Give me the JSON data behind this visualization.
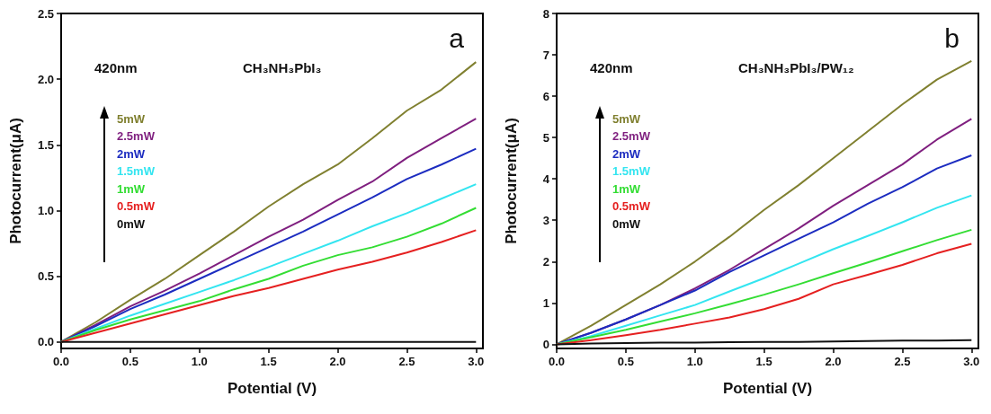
{
  "chart_data": [
    {
      "type": "line",
      "title": "a",
      "xlabel": "Potential (V)",
      "ylabel": "Photocurrent(μA)",
      "annotations": [
        "420nm",
        "CH₃NH₃PbI₃"
      ],
      "legend": "top left",
      "x": [
        0,
        0.25,
        0.5,
        0.75,
        1,
        1.25,
        1.5,
        1.75,
        2,
        2.25,
        2.5,
        2.75,
        3
      ],
      "xlim": [
        0,
        3.05
      ],
      "xticks": [
        {
          "value": 0,
          "label": "0.0"
        },
        {
          "value": 0.5,
          "label": "0.5"
        },
        {
          "value": 1,
          "label": "1.0"
        },
        {
          "value": 1.5,
          "label": "1.5"
        },
        {
          "value": 2,
          "label": "2.0"
        },
        {
          "value": 2.5,
          "label": "2.5"
        },
        {
          "value": 3,
          "label": "3.0"
        }
      ],
      "ylim": [
        -0.05,
        2.5
      ],
      "yticks": [
        {
          "value": 0,
          "label": "0.0"
        },
        {
          "value": 0.5,
          "label": "0.5"
        },
        {
          "value": 1,
          "label": "1.0"
        },
        {
          "value": 1.5,
          "label": "1.5"
        },
        {
          "value": 2,
          "label": "2.0"
        },
        {
          "value": 2.5,
          "label": "2.5"
        }
      ],
      "series": [
        {
          "name": "5mW",
          "color": "#808030",
          "values": [
            0,
            0.15,
            0.32,
            0.48,
            0.66,
            0.84,
            1.03,
            1.2,
            1.35,
            1.55,
            1.76,
            1.92,
            2.13
          ]
        },
        {
          "name": "2.5mW",
          "color": "#7f1f7f",
          "values": [
            0,
            0.13,
            0.27,
            0.39,
            0.52,
            0.66,
            0.8,
            0.93,
            1.08,
            1.22,
            1.4,
            1.55,
            1.7
          ]
        },
        {
          "name": "2mW",
          "color": "#1c2cc0",
          "values": [
            0,
            0.12,
            0.25,
            0.36,
            0.48,
            0.6,
            0.72,
            0.84,
            0.97,
            1.1,
            1.24,
            1.35,
            1.47
          ]
        },
        {
          "name": "1.5mW",
          "color": "#33e5f0",
          "values": [
            0,
            0.1,
            0.2,
            0.29,
            0.38,
            0.47,
            0.57,
            0.67,
            0.77,
            0.88,
            0.98,
            1.09,
            1.2
          ]
        },
        {
          "name": "1mW",
          "color": "#33dd33",
          "values": [
            0,
            0.09,
            0.17,
            0.24,
            0.31,
            0.4,
            0.48,
            0.58,
            0.66,
            0.72,
            0.8,
            0.9,
            1.02
          ]
        },
        {
          "name": "0.5mW",
          "color": "#e52020",
          "values": [
            0,
            0.07,
            0.14,
            0.21,
            0.28,
            0.35,
            0.41,
            0.48,
            0.55,
            0.61,
            0.68,
            0.76,
            0.85
          ]
        },
        {
          "name": "0mW",
          "color": "#111111",
          "values": [
            0,
            0,
            0,
            0,
            0,
            0,
            0,
            0,
            0,
            0,
            0,
            0,
            0
          ]
        }
      ]
    },
    {
      "type": "line",
      "title": "b",
      "xlabel": "Potential (V)",
      "ylabel": "Photocurrent(μA)",
      "annotations": [
        "420nm",
        "CH₃NH₃PbI₃/PW₁₂"
      ],
      "legend": "top left",
      "x": [
        0,
        0.25,
        0.5,
        0.75,
        1,
        1.25,
        1.5,
        1.75,
        2,
        2.25,
        2.5,
        2.75,
        3
      ],
      "xlim": [
        0,
        3.05
      ],
      "xticks": [
        {
          "value": 0,
          "label": "0.0"
        },
        {
          "value": 0.5,
          "label": "0.5"
        },
        {
          "value": 1,
          "label": "1.0"
        },
        {
          "value": 1.5,
          "label": "1.5"
        },
        {
          "value": 2,
          "label": "2.0"
        },
        {
          "value": 2.5,
          "label": "2.5"
        },
        {
          "value": 3,
          "label": "3.0"
        }
      ],
      "ylim": [
        -0.1,
        8
      ],
      "yticks": [
        0,
        1,
        2,
        3,
        4,
        5,
        6,
        7,
        8
      ],
      "series": [
        {
          "name": "5mW",
          "color": "#808030",
          "values": [
            0,
            0.45,
            0.95,
            1.45,
            2.0,
            2.6,
            3.25,
            3.85,
            4.5,
            5.15,
            5.8,
            6.4,
            6.85
          ]
        },
        {
          "name": "2.5mW",
          "color": "#7f1f7f",
          "values": [
            0,
            0.28,
            0.6,
            0.95,
            1.35,
            1.8,
            2.3,
            2.8,
            3.35,
            3.85,
            4.35,
            4.95,
            5.45
          ]
        },
        {
          "name": "2mW",
          "color": "#1c2cc0",
          "values": [
            0,
            0.28,
            0.6,
            0.95,
            1.3,
            1.75,
            2.15,
            2.55,
            2.95,
            3.4,
            3.8,
            4.25,
            4.57
          ]
        },
        {
          "name": "1.5mW",
          "color": "#33e5f0",
          "values": [
            0,
            0.2,
            0.45,
            0.7,
            0.95,
            1.28,
            1.6,
            1.95,
            2.3,
            2.62,
            2.95,
            3.3,
            3.6
          ]
        },
        {
          "name": "1mW",
          "color": "#33dd33",
          "values": [
            0,
            0.17,
            0.35,
            0.55,
            0.75,
            0.97,
            1.2,
            1.45,
            1.72,
            1.98,
            2.25,
            2.52,
            2.77
          ]
        },
        {
          "name": "0.5mW",
          "color": "#e52020",
          "values": [
            0,
            0.1,
            0.22,
            0.35,
            0.5,
            0.65,
            0.85,
            1.1,
            1.45,
            1.68,
            1.92,
            2.2,
            2.43
          ]
        },
        {
          "name": "0mW",
          "color": "#111111",
          "values": [
            0,
            0.02,
            0.03,
            0.04,
            0.04,
            0.05,
            0.06,
            0.06,
            0.07,
            0.08,
            0.09,
            0.09,
            0.1
          ]
        }
      ]
    }
  ]
}
